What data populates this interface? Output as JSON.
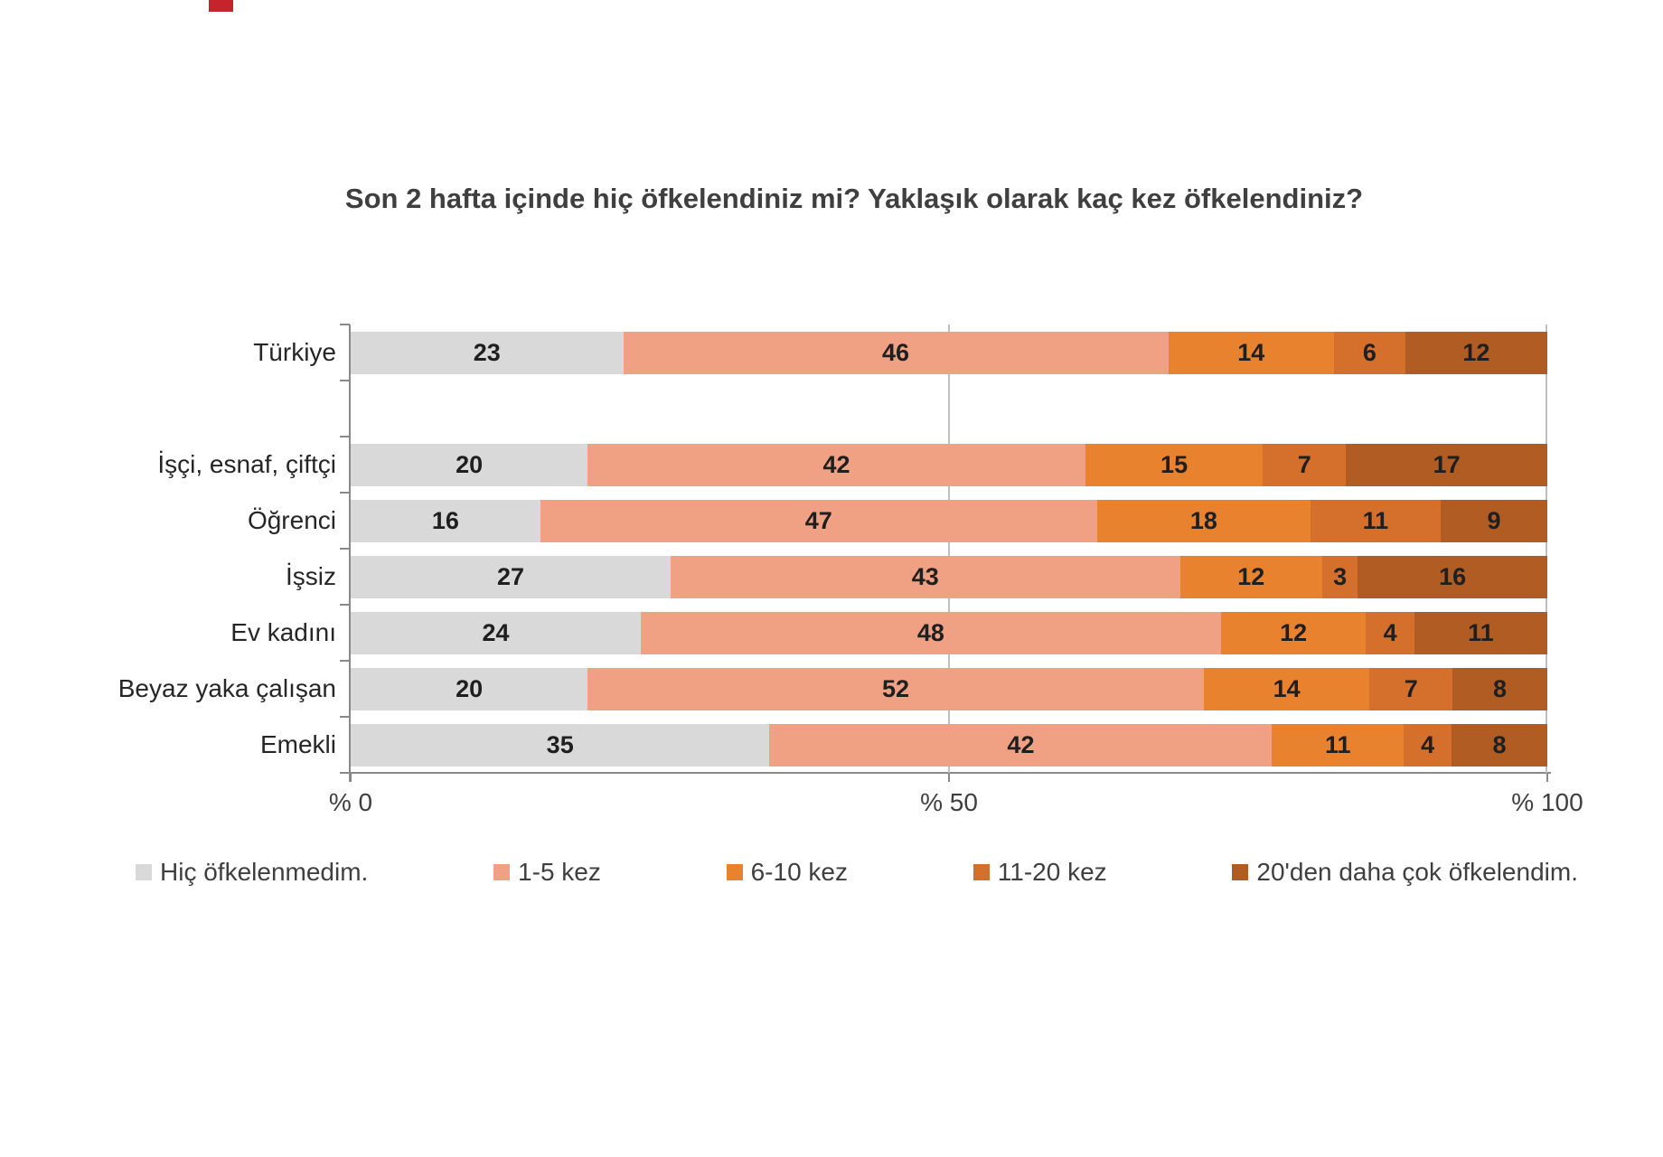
{
  "decor": {
    "top_edge_fragment_color": "#C5242C"
  },
  "chart_data": {
    "type": "bar",
    "subtype": "stacked-horizontal-100pct",
    "title": "Son 2 hafta içinde hiç öfkelendiniz mi? Yaklaşık olarak kaç kez öfkelendiniz?",
    "categories": [
      "Türkiye",
      "İşçi, esnaf, çiftçi",
      "Öğrenci",
      "İşsiz",
      "Ev kadını",
      "Beyaz yaka çalışan",
      "Emekli"
    ],
    "series": [
      {
        "name": "Hiç öfkelenmedim.",
        "color": "#D9D9D9",
        "values": [
          23,
          20,
          16,
          27,
          24,
          20,
          35
        ]
      },
      {
        "name": "1-5 kez",
        "color": "#F0A183",
        "values": [
          46,
          42,
          47,
          43,
          48,
          52,
          42
        ]
      },
      {
        "name": "6-10 kez",
        "color": "#E8822E",
        "values": [
          14,
          15,
          18,
          12,
          12,
          14,
          11
        ]
      },
      {
        "name": "11-20 kez",
        "color": "#D5702C",
        "values": [
          6,
          7,
          11,
          3,
          4,
          7,
          4
        ]
      },
      {
        "name": "20'den daha çok öfkelendim.",
        "color": "#B05C22",
        "values": [
          12,
          17,
          9,
          16,
          11,
          8,
          8
        ]
      }
    ],
    "x_axis": {
      "tick_labels": [
        "% 0",
        "% 50",
        "% 100"
      ],
      "tick_values": [
        0,
        50,
        100
      ],
      "range": [
        0,
        100
      ]
    },
    "value_labels": "inside-center",
    "legend_position": "bottom",
    "gridlines": {
      "vertical_at": [
        50,
        100
      ]
    },
    "layout": {
      "gap_after_first_category": true
    }
  }
}
